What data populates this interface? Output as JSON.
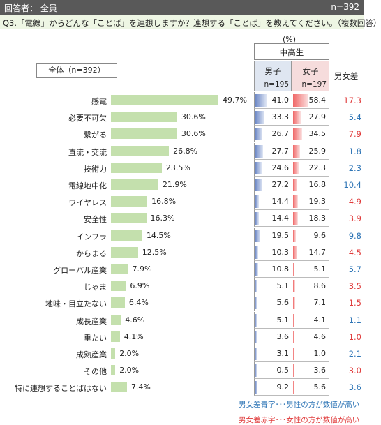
{
  "header": {
    "left": "回答者： 全員",
    "right": "n=392"
  },
  "question": "Q3.「電線」からどんな「ことば」を連想しますか？連想する「ことば」を教えてください。（複数回答）",
  "unit": "(%)",
  "group_label": "中高生",
  "columns": {
    "male": "男子",
    "male_n": "n=195",
    "female": "女子",
    "female_n": "n=197",
    "diff": "男女差"
  },
  "total_label": "全体（n=392）",
  "colors": {
    "bar": "#c4e0ad",
    "male_gradient": "#6d88c6",
    "female_gradient": "#f06767",
    "blue_text": "#2e75b6",
    "red_text": "#e03c3c"
  },
  "chart_data": {
    "type": "bar",
    "orientation": "horizontal",
    "categories": [
      "感電",
      "必要不可欠",
      "繋がる",
      "直流・交流",
      "技術力",
      "電線地中化",
      "ワイヤレス",
      "安全性",
      "インフラ",
      "からまる",
      "グローバル産業",
      "じゃま",
      "地味・目立たない",
      "成長産業",
      "重たい",
      "成熟産業",
      "その他",
      "特に連想することばはない"
    ],
    "series": [
      {
        "name": "全体（n=392）",
        "values": [
          49.7,
          30.6,
          30.6,
          26.8,
          23.5,
          21.9,
          16.8,
          16.3,
          14.5,
          12.5,
          7.9,
          6.9,
          6.4,
          4.6,
          4.1,
          2.0,
          2.0,
          7.4
        ]
      },
      {
        "name": "男子",
        "values": [
          41.0,
          33.3,
          26.7,
          27.7,
          24.6,
          27.2,
          14.4,
          14.4,
          19.5,
          10.3,
          10.8,
          5.1,
          5.6,
          5.1,
          3.6,
          3.1,
          0.5,
          9.2
        ]
      },
      {
        "name": "女子",
        "values": [
          58.4,
          27.9,
          34.5,
          25.9,
          22.3,
          16.8,
          19.3,
          18.3,
          9.6,
          14.7,
          5.1,
          8.6,
          7.1,
          4.1,
          4.6,
          1.0,
          3.6,
          5.6
        ]
      },
      {
        "name": "男女差",
        "values": [
          17.3,
          5.4,
          7.9,
          1.8,
          2.3,
          10.4,
          4.9,
          3.9,
          9.8,
          4.5,
          5.7,
          3.5,
          1.5,
          1.1,
          1.0,
          2.1,
          3.0,
          3.6
        ]
      }
    ],
    "diff_higher": [
      "female",
      "male",
      "female",
      "male",
      "male",
      "male",
      "female",
      "female",
      "male",
      "female",
      "male",
      "female",
      "female",
      "male",
      "female",
      "male",
      "female",
      "male"
    ]
  },
  "legend": {
    "blue_note": "男女差青字･･･男性の方が数値が高い",
    "red_note": "男女差赤字･･･女性の方が数値が高い"
  }
}
